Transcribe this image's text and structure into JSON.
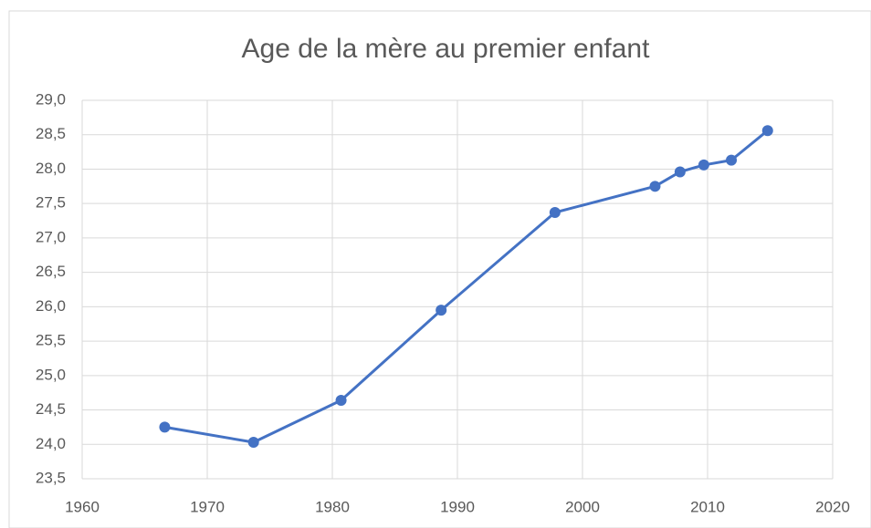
{
  "chart_data": {
    "type": "line",
    "title": "Age de la mère au premier enfant",
    "x": [
      1966.6,
      1973.7,
      1980.7,
      1988.7,
      1997.8,
      2005.8,
      2007.8,
      2009.7,
      2011.9,
      2014.8
    ],
    "series": [
      {
        "color": "#4472c4",
        "values": [
          24.25,
          24.03,
          24.64,
          25.95,
          27.37,
          27.75,
          27.96,
          28.06,
          28.13,
          28.56
        ]
      }
    ],
    "xlim": [
      1960,
      2020
    ],
    "xticks": [
      1960,
      1970,
      1980,
      1990,
      2000,
      2010,
      2020
    ],
    "ylim": [
      23.5,
      29
    ],
    "yticks": [
      {
        "value": 23.5,
        "label": "23,5"
      },
      {
        "value": 24,
        "label": "24,0"
      },
      {
        "value": 24.5,
        "label": "24,5"
      },
      {
        "value": 25,
        "label": "25,0"
      },
      {
        "value": 25.5,
        "label": "25,5"
      },
      {
        "value": 26,
        "label": "26,0"
      },
      {
        "value": 26.5,
        "label": "26,5"
      },
      {
        "value": 27,
        "label": "27,0"
      },
      {
        "value": 27.5,
        "label": "27,5"
      },
      {
        "value": 28,
        "label": "28,0"
      },
      {
        "value": 28.5,
        "label": "28,5"
      },
      {
        "value": 29,
        "label": "29,0"
      }
    ],
    "grid": true,
    "markers": true
  }
}
